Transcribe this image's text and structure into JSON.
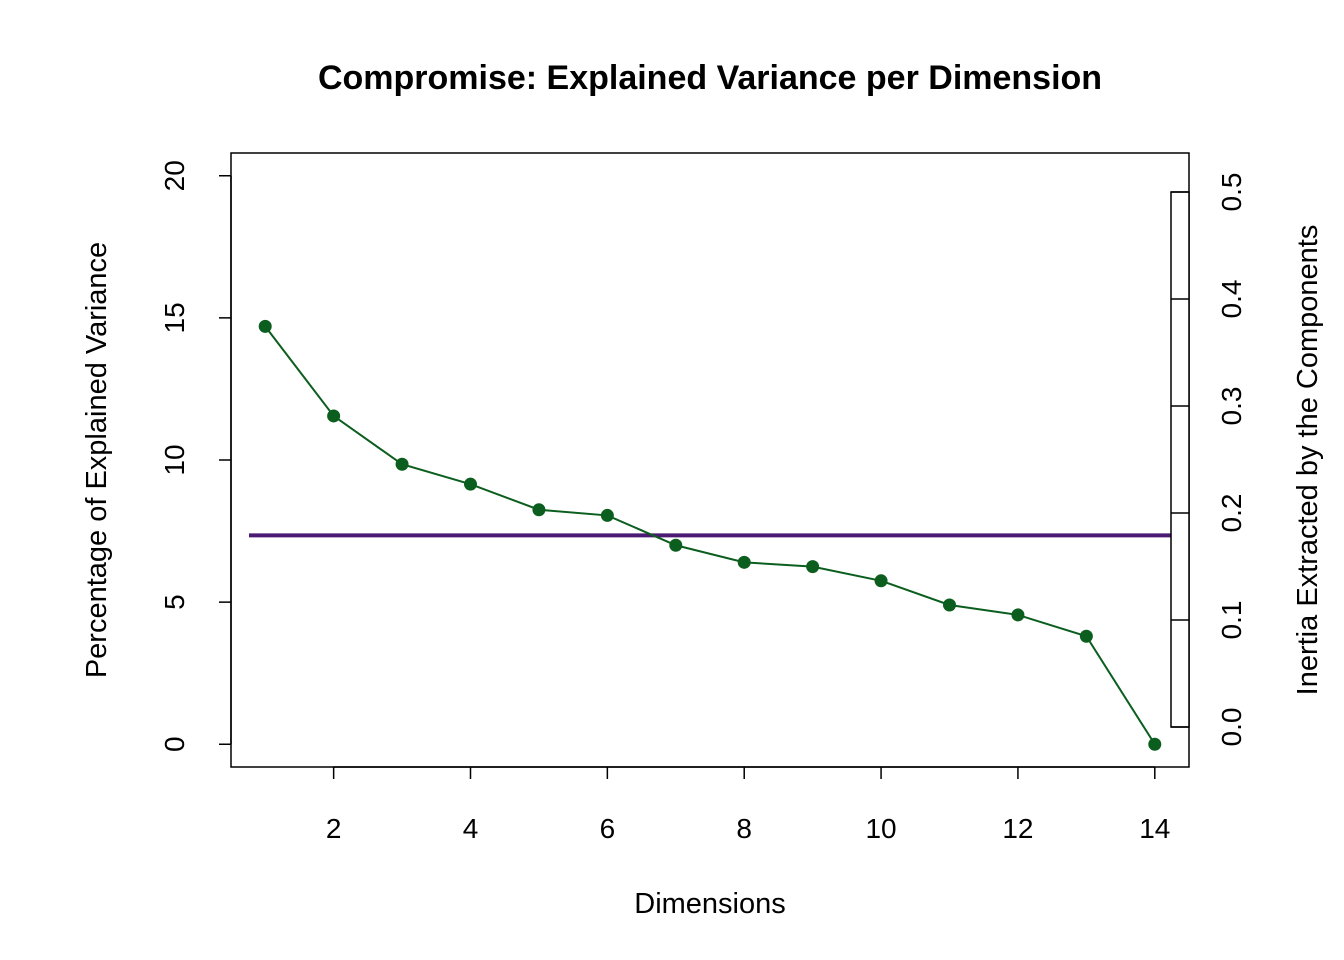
{
  "chart_data": {
    "type": "line",
    "title": "Compromise: Explained Variance per Dimension",
    "xlabel": "Dimensions",
    "ylabel": "Percentage of Explained Variance",
    "y2label": "Inertia Extracted by the Components",
    "xlim": [
      0.5,
      14.5
    ],
    "ylim": [
      -0.8,
      20.8
    ],
    "y2lim": [
      0,
      0.5
    ],
    "x_ticks": [
      2,
      4,
      6,
      8,
      10,
      12,
      14
    ],
    "y_ticks": [
      0,
      5,
      10,
      15,
      20
    ],
    "y2_ticks": [
      0.0,
      0.1,
      0.2,
      0.3,
      0.4,
      0.5
    ],
    "x_tick_labels": [
      "2",
      "4",
      "6",
      "8",
      "10",
      "12",
      "14"
    ],
    "y_tick_labels": [
      "0",
      "5",
      "10",
      "15",
      "20"
    ],
    "y2_tick_labels": [
      "0.0",
      "0.1",
      "0.2",
      "0.3",
      "0.4",
      "0.5"
    ],
    "grid": false,
    "series": [
      {
        "x": [
          1,
          2,
          3,
          4,
          5,
          6,
          7,
          8,
          9,
          10,
          11,
          12,
          13,
          14
        ],
        "values": [
          14.7,
          11.55,
          9.85,
          9.15,
          8.25,
          8.05,
          7.0,
          6.4,
          6.25,
          5.75,
          4.9,
          4.55,
          3.8,
          0.0
        ],
        "color": "#0b5e1e",
        "marker": "filled-circle"
      }
    ],
    "reference_line": {
      "y": 7.35,
      "color": "#4b1a74"
    }
  }
}
